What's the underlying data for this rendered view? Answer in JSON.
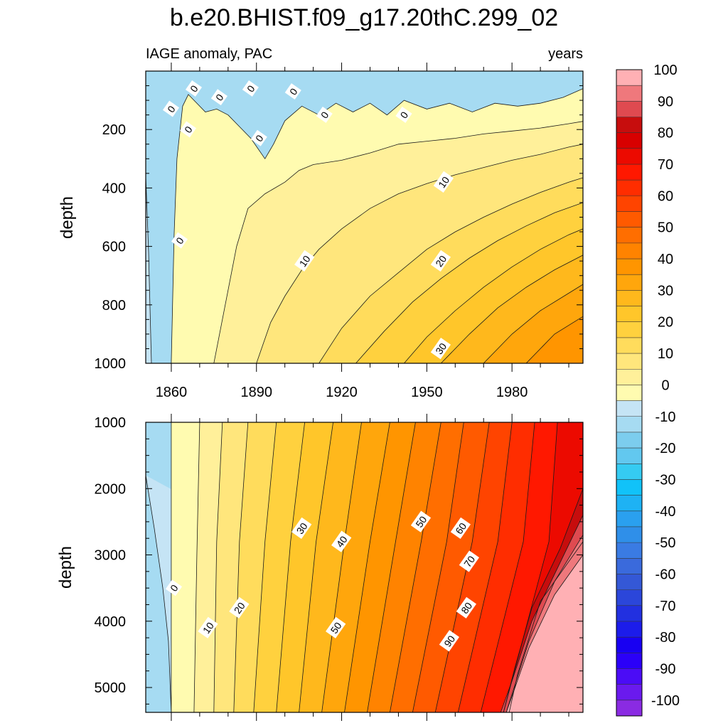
{
  "title": "b.e20.BHIST.f09_g17.20thC.299_02",
  "subtitle_left": "IAGE anomaly, PAC",
  "subtitle_right": "years",
  "colors": {
    "frame": "#000000",
    "contour_line": "#1a1a1a"
  },
  "chart_data": [
    {
      "type": "contour",
      "panel": "upper",
      "xlabel": "",
      "ylabel": "depth",
      "x_ticks": [
        1860,
        1890,
        1920,
        1950,
        1980
      ],
      "x_tick_labels": [
        "1860",
        "1890",
        "1920",
        "1950",
        "1980"
      ],
      "xlim": [
        1851,
        2005
      ],
      "y_ticks": [
        200,
        400,
        600,
        800,
        1000
      ],
      "y_tick_labels": [
        "200",
        "400",
        "600",
        "800",
        "1000"
      ],
      "ylim": [
        0,
        1000
      ],
      "y_inverted": true,
      "contour_interval": 5,
      "contours": [
        {
          "level": -5,
          "points": [
            [
              1851,
              360
            ],
            [
              1852,
              620
            ],
            [
              1853,
              1000
            ]
          ]
        },
        {
          "level": 0,
          "points": [
            [
              1860,
              1000
            ],
            [
              1861,
              560
            ],
            [
              1862,
              300
            ],
            [
              1864,
              120
            ],
            [
              1866,
              80
            ],
            [
              1872,
              140
            ],
            [
              1876,
              130
            ],
            [
              1880,
              150
            ],
            [
              1884,
              190
            ],
            [
              1888,
              230
            ],
            [
              1893,
              300
            ],
            [
              1896,
              250
            ],
            [
              1900,
              170
            ],
            [
              1906,
              120
            ],
            [
              1912,
              150
            ],
            [
              1918,
              110
            ],
            [
              1924,
              140
            ],
            [
              1930,
              110
            ],
            [
              1936,
              150
            ],
            [
              1942,
              100
            ],
            [
              1950,
              130
            ],
            [
              1958,
              110
            ],
            [
              1966,
              140
            ],
            [
              1974,
              110
            ],
            [
              1982,
              120
            ],
            [
              1990,
              110
            ],
            [
              1998,
              90
            ],
            [
              2005,
              60
            ]
          ]
        },
        {
          "level": 5,
          "points": [
            [
              1875,
              1000
            ],
            [
              1879,
              800
            ],
            [
              1883,
              600
            ],
            [
              1887,
              470
            ],
            [
              1893,
              420
            ],
            [
              1900,
              380
            ],
            [
              1905,
              340
            ],
            [
              1910,
              320
            ],
            [
              1920,
              305
            ],
            [
              1930,
              280
            ],
            [
              1940,
              250
            ],
            [
              1950,
              240
            ],
            [
              1960,
              230
            ],
            [
              1970,
              215
            ],
            [
              1980,
              205
            ],
            [
              1990,
              195
            ],
            [
              2000,
              180
            ],
            [
              2005,
              172
            ]
          ]
        },
        {
          "level": 10,
          "points": [
            [
              1890,
              1000
            ],
            [
              1895,
              860
            ],
            [
              1900,
              770
            ],
            [
              1906,
              680
            ],
            [
              1912,
              610
            ],
            [
              1920,
              540
            ],
            [
              1930,
              470
            ],
            [
              1940,
              420
            ],
            [
              1950,
              385
            ],
            [
              1960,
              355
            ],
            [
              1970,
              330
            ],
            [
              1980,
              305
            ],
            [
              1990,
              285
            ],
            [
              2000,
              260
            ],
            [
              2005,
              250
            ]
          ]
        },
        {
          "level": 15,
          "points": [
            [
              1912,
              1000
            ],
            [
              1920,
              880
            ],
            [
              1930,
              770
            ],
            [
              1940,
              690
            ],
            [
              1950,
              610
            ],
            [
              1960,
              550
            ],
            [
              1970,
              500
            ],
            [
              1980,
              455
            ],
            [
              1990,
              415
            ],
            [
              2000,
              380
            ],
            [
              2005,
              365
            ]
          ]
        },
        {
          "level": 20,
          "points": [
            [
              1925,
              1000
            ],
            [
              1935,
              890
            ],
            [
              1945,
              790
            ],
            [
              1955,
              710
            ],
            [
              1965,
              640
            ],
            [
              1975,
              580
            ],
            [
              1985,
              530
            ],
            [
              1995,
              485
            ],
            [
              2005,
              450
            ]
          ]
        },
        {
          "level": 25,
          "points": [
            [
              1942,
              1000
            ],
            [
              1950,
              910
            ],
            [
              1960,
              820
            ],
            [
              1970,
              740
            ],
            [
              1980,
              670
            ],
            [
              1990,
              610
            ],
            [
              2000,
              560
            ],
            [
              2005,
              540
            ]
          ]
        },
        {
          "level": 30,
          "points": [
            [
              1955,
              1000
            ],
            [
              1965,
              900
            ],
            [
              1975,
              810
            ],
            [
              1985,
              740
            ],
            [
              1995,
              680
            ],
            [
              2005,
              630
            ]
          ]
        },
        {
          "level": 35,
          "points": [
            [
              1970,
              1000
            ],
            [
              1980,
              900
            ],
            [
              1990,
              820
            ],
            [
              2000,
              760
            ],
            [
              2005,
              730
            ]
          ]
        },
        {
          "level": 40,
          "points": [
            [
              1985,
              1000
            ],
            [
              1995,
              900
            ],
            [
              2005,
              840
            ]
          ]
        }
      ],
      "contour_labels": [
        {
          "text": "0",
          "x": 1868,
          "y": 60
        },
        {
          "text": "0",
          "x": 1877,
          "y": 90
        },
        {
          "text": "0",
          "x": 1888,
          "y": 60
        },
        {
          "text": "0",
          "x": 1903,
          "y": 70
        },
        {
          "text": "0",
          "x": 1860,
          "y": 130
        },
        {
          "text": "0",
          "x": 1866,
          "y": 200
        },
        {
          "text": "0",
          "x": 1891,
          "y": 230
        },
        {
          "text": "0",
          "x": 1914,
          "y": 150
        },
        {
          "text": "0",
          "x": 1942,
          "y": 150
        },
        {
          "text": "0",
          "x": 1863,
          "y": 580
        },
        {
          "text": "10",
          "x": 1956,
          "y": 380
        },
        {
          "text": "10",
          "x": 1907,
          "y": 650
        },
        {
          "text": "20",
          "x": 1955,
          "y": 650
        },
        {
          "text": "30",
          "x": 1955,
          "y": 950
        }
      ]
    },
    {
      "type": "contour",
      "panel": "lower",
      "xlabel": "",
      "ylabel": "depth",
      "x_ticks": [
        1860,
        1890,
        1920,
        1950,
        1980
      ],
      "xlim": [
        1851,
        2005
      ],
      "y_ticks": [
        1000,
        2000,
        3000,
        4000,
        5000
      ],
      "y_tick_labels": [
        "1000",
        "2000",
        "3000",
        "4000",
        "5000"
      ],
      "ylim": [
        1000,
        5375
      ],
      "y_inverted": true,
      "contour_interval": 5,
      "contours": [
        {
          "level": -5,
          "points": [
            [
              1851,
              1800
            ],
            [
              1854,
              2600
            ],
            [
              1857,
              3500
            ],
            [
              1859,
              4300
            ],
            [
              1860,
              5375
            ]
          ]
        },
        {
          "level": 0,
          "points": [
            [
              1860,
              1000
            ],
            [
              1860,
              5375
            ]
          ]
        },
        {
          "level": 5,
          "points": [
            [
              1870,
              1000
            ],
            [
              1869,
              3000
            ],
            [
              1868,
              5375
            ]
          ]
        },
        {
          "level": 10,
          "points": [
            [
              1878,
              1000
            ],
            [
              1876,
              2800
            ],
            [
              1875,
              5375
            ]
          ]
        },
        {
          "level": 15,
          "points": [
            [
              1887,
              1000
            ],
            [
              1884,
              2800
            ],
            [
              1882,
              5375
            ]
          ]
        },
        {
          "level": 20,
          "points": [
            [
              1897,
              1000
            ],
            [
              1893,
              2800
            ],
            [
              1889,
              5375
            ]
          ]
        },
        {
          "level": 25,
          "points": [
            [
              1907,
              1000
            ],
            [
              1902,
              2800
            ],
            [
              1897,
              5375
            ]
          ]
        },
        {
          "level": 30,
          "points": [
            [
              1917,
              1000
            ],
            [
              1911,
              2800
            ],
            [
              1905,
              5375
            ]
          ]
        },
        {
          "level": 35,
          "points": [
            [
              1927,
              1000
            ],
            [
              1921,
              2800
            ],
            [
              1913,
              5375
            ]
          ]
        },
        {
          "level": 40,
          "points": [
            [
              1937,
              1000
            ],
            [
              1930,
              2800
            ],
            [
              1921,
              5375
            ]
          ]
        },
        {
          "level": 45,
          "points": [
            [
              1946,
              1000
            ],
            [
              1939,
              2800
            ],
            [
              1929,
              5375
            ]
          ]
        },
        {
          "level": 50,
          "points": [
            [
              1955,
              1000
            ],
            [
              1948,
              2800
            ],
            [
              1937,
              5375
            ]
          ]
        },
        {
          "level": 55,
          "points": [
            [
              1963,
              1000
            ],
            [
              1957,
              2800
            ],
            [
              1945,
              5375
            ]
          ]
        },
        {
          "level": 60,
          "points": [
            [
              1972,
              1000
            ],
            [
              1966,
              2800
            ],
            [
              1953,
              5375
            ]
          ]
        },
        {
          "level": 65,
          "points": [
            [
              1980,
              1000
            ],
            [
              1975,
              2800
            ],
            [
              1961,
              5375
            ]
          ]
        },
        {
          "level": 70,
          "points": [
            [
              1988,
              1000
            ],
            [
              1984,
              2800
            ],
            [
              1969,
              5375
            ]
          ]
        },
        {
          "level": 75,
          "points": [
            [
              1996,
              1000
            ],
            [
              1993,
              2800
            ],
            [
              1977,
              5375
            ]
          ]
        },
        {
          "level": 80,
          "points": [
            [
              2005,
              1000
            ],
            [
              2005,
              2800
            ],
            [
              1990,
              3700
            ],
            [
              1982,
              4800
            ],
            [
              1979,
              5375
            ]
          ]
        },
        {
          "level": 85,
          "points": [
            [
              2005,
              2000
            ],
            [
              1997,
              2900
            ],
            [
              1987,
              3800
            ],
            [
              1981,
              4700
            ],
            [
              1977,
              5375
            ]
          ]
        },
        {
          "level": 90,
          "points": [
            [
              2005,
              2400
            ],
            [
              1996,
              3200
            ],
            [
              1987,
              4000
            ],
            [
              1980,
              4900
            ],
            [
              1976,
              5375
            ]
          ]
        },
        {
          "level": 95,
          "points": [
            [
              2005,
              2700
            ],
            [
              1995,
              3400
            ],
            [
              1986,
              4300
            ],
            [
              1980,
              5100
            ],
            [
              1978,
              5375
            ]
          ]
        },
        {
          "level": 100,
          "points": [
            [
              2005,
              3000
            ],
            [
              1995,
              3600
            ],
            [
              1986,
              4400
            ],
            [
              1978,
              5375
            ]
          ]
        }
      ],
      "contour_labels": [
        {
          "text": "0",
          "x": 1861,
          "y": 3500
        },
        {
          "text": "10",
          "x": 1873,
          "y": 4100
        },
        {
          "text": "20",
          "x": 1884,
          "y": 3800
        },
        {
          "text": "30",
          "x": 1906,
          "y": 2600
        },
        {
          "text": "40",
          "x": 1920,
          "y": 2800
        },
        {
          "text": "50",
          "x": 1948,
          "y": 2500
        },
        {
          "text": "50",
          "x": 1918,
          "y": 4100
        },
        {
          "text": "60",
          "x": 1962,
          "y": 2600
        },
        {
          "text": "70",
          "x": 1965,
          "y": 3100
        },
        {
          "text": "80",
          "x": 1964,
          "y": 3800
        },
        {
          "text": "90",
          "x": 1958,
          "y": 4300
        }
      ]
    }
  ],
  "colorbar": {
    "levels": [
      -100,
      -95,
      -90,
      -85,
      -80,
      -75,
      -70,
      -65,
      -60,
      -55,
      -50,
      -45,
      -40,
      -35,
      -30,
      -25,
      -20,
      -15,
      -10,
      -5,
      0,
      5,
      10,
      15,
      20,
      25,
      30,
      35,
      40,
      45,
      50,
      55,
      60,
      65,
      70,
      75,
      80,
      85,
      90,
      95,
      100
    ],
    "labels": [
      "100",
      "90",
      "80",
      "70",
      "60",
      "50",
      "40",
      "30",
      "20",
      "10",
      "0",
      "-10",
      "-20",
      "-30",
      "-40",
      "-50",
      "-60",
      "-70",
      "-80",
      "-90",
      "-100"
    ],
    "colors_bottom_to_top": [
      "#8a2be2",
      "#6a1aee",
      "#4b0cf6",
      "#2b00f8",
      "#1800f2",
      "#1c1cea",
      "#2230e0",
      "#2b46da",
      "#3458d6",
      "#3a6adc",
      "#3a7be3",
      "#2f8fe9",
      "#2aa0ef",
      "#1eb2f4",
      "#11c2f9",
      "#35cbf2",
      "#62c8ef",
      "#7ccdee",
      "#a6dbf2",
      "#c5e4f5",
      "#fffbb0",
      "#fff09a",
      "#ffe67c",
      "#ffdc5c",
      "#ffd13e",
      "#ffc62a",
      "#ffb81c",
      "#ffa60c",
      "#ff9500",
      "#ff8300",
      "#ff6e00",
      "#ff5a00",
      "#ff4400",
      "#ff2d00",
      "#ff1800",
      "#ec0a00",
      "#d80000",
      "#c70d0d",
      "#df4a50",
      "#ef787c",
      "#ffb0b4"
    ]
  }
}
